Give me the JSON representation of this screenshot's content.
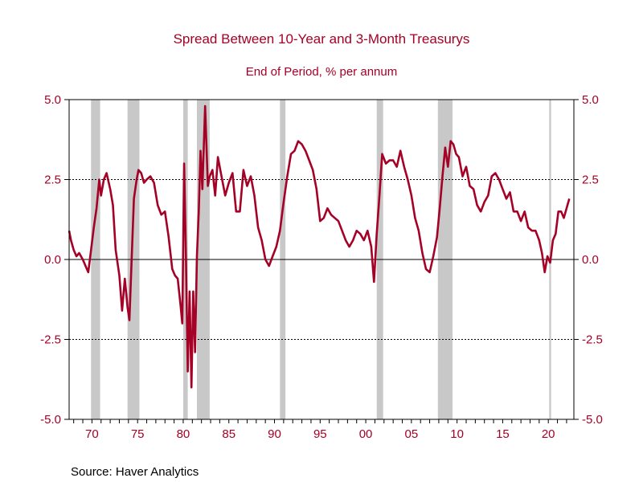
{
  "chart_data": {
    "type": "line",
    "title": "Spread Between 10-Year and 3-Month Treasurys",
    "subtitle": "End of Period, % per annum",
    "source": "Source:  Haver Analytics",
    "xlabel": "",
    "ylabel": "",
    "xlim": [
      1967.5,
      2022.8
    ],
    "ylim": [
      -5.0,
      5.0
    ],
    "y_ticks": [
      5.0,
      2.5,
      0.0,
      -2.5,
      -5.0
    ],
    "y_tick_labels": [
      "5.0",
      "2.5",
      "0.0",
      "-2.5",
      "-5.0"
    ],
    "x_ticks": [
      1970,
      1975,
      1980,
      1985,
      1990,
      1995,
      2000,
      2005,
      2010,
      2015,
      2020
    ],
    "x_tick_labels": [
      "70",
      "75",
      "80",
      "85",
      "90",
      "95",
      "00",
      "05",
      "10",
      "15",
      "20"
    ],
    "gridlines_y": [
      2.5,
      -2.5
    ],
    "zero_line": 0.0,
    "recessions": [
      [
        1969.9,
        1970.9
      ],
      [
        1973.9,
        1975.2
      ],
      [
        1980.0,
        1980.5
      ],
      [
        1981.5,
        1982.9
      ],
      [
        1990.6,
        1991.2
      ],
      [
        2001.2,
        2001.9
      ],
      [
        2007.9,
        2009.5
      ],
      [
        2020.1,
        2020.3
      ]
    ],
    "colors": {
      "series": "#a50026",
      "text": "#a50026",
      "recession": "#c8c8c8",
      "axis": "#000000"
    },
    "series": [
      {
        "x": [
          1967.5,
          1967.7,
          1968.0,
          1968.3,
          1968.6,
          1969.0,
          1969.3,
          1969.6,
          1969.9,
          1970.2,
          1970.5,
          1970.8,
          1971.0,
          1971.3,
          1971.6,
          1972.0,
          1972.3,
          1972.6,
          1973.0,
          1973.3,
          1973.6,
          1973.9,
          1974.1,
          1974.3,
          1974.6,
          1974.9,
          1975.1,
          1975.4,
          1975.7,
          1976.0,
          1976.4,
          1976.8,
          1977.2,
          1977.6,
          1978.0,
          1978.4,
          1978.8,
          1979.1,
          1979.4,
          1979.7,
          1979.9,
          1980.1,
          1980.3,
          1980.5,
          1980.7,
          1980.9,
          1981.1,
          1981.3,
          1981.5,
          1981.7,
          1981.9,
          1982.1,
          1982.4,
          1982.7,
          1982.9,
          1983.2,
          1983.5,
          1983.8,
          1984.2,
          1984.6,
          1985.0,
          1985.4,
          1985.8,
          1986.2,
          1986.6,
          1987.0,
          1987.4,
          1987.8,
          1988.2,
          1988.6,
          1989.0,
          1989.4,
          1989.8,
          1990.2,
          1990.6,
          1991.0,
          1991.4,
          1991.8,
          1992.2,
          1992.6,
          1993.0,
          1993.4,
          1993.8,
          1994.2,
          1994.6,
          1995.0,
          1995.4,
          1995.8,
          1996.2,
          1996.6,
          1997.0,
          1997.4,
          1997.8,
          1998.2,
          1998.6,
          1999.0,
          1999.4,
          1999.8,
          2000.2,
          2000.6,
          2000.9,
          2001.2,
          2001.5,
          2001.8,
          2002.2,
          2002.6,
          2003.0,
          2003.4,
          2003.8,
          2004.2,
          2004.6,
          2005.0,
          2005.4,
          2005.8,
          2006.2,
          2006.6,
          2007.0,
          2007.4,
          2007.8,
          2008.1,
          2008.4,
          2008.7,
          2009.0,
          2009.3,
          2009.6,
          2009.9,
          2010.2,
          2010.6,
          2011.0,
          2011.4,
          2011.8,
          2012.2,
          2012.6,
          2013.0,
          2013.4,
          2013.8,
          2014.2,
          2014.6,
          2015.0,
          2015.4,
          2015.8,
          2016.2,
          2016.6,
          2017.0,
          2017.4,
          2017.8,
          2018.2,
          2018.6,
          2019.0,
          2019.3,
          2019.6,
          2019.9,
          2020.2,
          2020.5,
          2020.8,
          2021.1,
          2021.4,
          2021.7,
          2022.0,
          2022.3
        ],
        "values": [
          0.9,
          0.6,
          0.3,
          0.1,
          0.2,
          0.0,
          -0.2,
          -0.4,
          0.3,
          1.0,
          1.6,
          2.5,
          2.0,
          2.5,
          2.7,
          2.2,
          1.7,
          0.3,
          -0.5,
          -1.6,
          -0.6,
          -1.5,
          -1.9,
          -0.4,
          1.9,
          2.5,
          2.8,
          2.7,
          2.4,
          2.5,
          2.6,
          2.4,
          1.7,
          1.4,
          1.5,
          0.7,
          -0.3,
          -0.5,
          -0.6,
          -1.4,
          -2.0,
          3.0,
          0.0,
          -3.5,
          -1.0,
          -4.0,
          -1.0,
          -2.9,
          0.1,
          1.5,
          3.4,
          2.2,
          4.8,
          2.3,
          2.6,
          2.8,
          2.0,
          3.2,
          2.6,
          2.0,
          2.4,
          2.7,
          1.5,
          1.5,
          2.8,
          2.3,
          2.6,
          2.0,
          1.0,
          0.6,
          0.0,
          -0.2,
          0.1,
          0.4,
          0.9,
          1.8,
          2.6,
          3.3,
          3.4,
          3.7,
          3.6,
          3.4,
          3.1,
          2.8,
          2.2,
          1.2,
          1.3,
          1.6,
          1.4,
          1.3,
          1.2,
          0.9,
          0.6,
          0.4,
          0.6,
          0.9,
          0.8,
          0.6,
          0.9,
          0.4,
          -0.7,
          0.8,
          2.0,
          3.3,
          3.0,
          3.1,
          3.1,
          2.9,
          3.4,
          2.9,
          2.5,
          2.0,
          1.3,
          0.9,
          0.2,
          -0.3,
          -0.4,
          0.1,
          0.7,
          1.6,
          2.6,
          3.5,
          2.9,
          3.7,
          3.6,
          3.3,
          3.2,
          2.6,
          2.9,
          2.3,
          2.2,
          1.7,
          1.5,
          1.8,
          2.0,
          2.6,
          2.7,
          2.5,
          2.2,
          1.9,
          2.1,
          1.5,
          1.5,
          1.2,
          1.5,
          1.0,
          0.9,
          0.9,
          0.6,
          0.2,
          -0.4,
          0.1,
          -0.1,
          0.6,
          0.8,
          1.5,
          1.5,
          1.3,
          1.6,
          1.9
        ]
      }
    ]
  }
}
